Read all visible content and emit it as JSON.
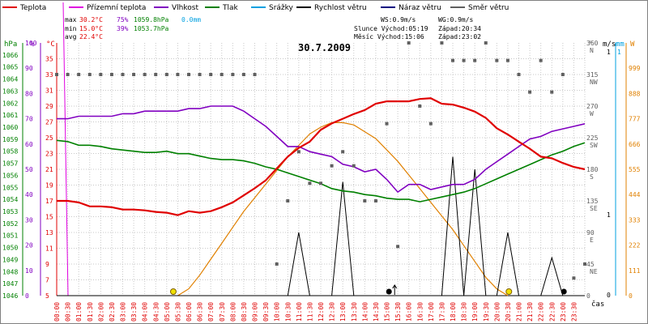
{
  "legend": [
    {
      "label": "Teplota",
      "color": "#e00000"
    },
    {
      "label": "Přízemní teplota",
      "color": "#e000e0"
    },
    {
      "label": "Vlhkost",
      "color": "#8000c0"
    },
    {
      "label": "Tlak",
      "color": "#008000"
    },
    {
      "label": "Srážky",
      "color": "#00a0e0"
    },
    {
      "label": "Rychlost větru",
      "color": "#000000"
    },
    {
      "label": "Náraz větru",
      "color": "#000080"
    },
    {
      "label": "Směr větru",
      "color": "#606060"
    }
  ],
  "stats": {
    "max": {
      "label": "max",
      "temp": "30.2°C",
      "hum": "75%",
      "press": "1059.8hPa",
      "rain": "0.0mm"
    },
    "min": {
      "label": "min",
      "temp": "15.0°C",
      "hum": "39%",
      "press": "1053.7hPa"
    },
    "avg": {
      "label": "avg",
      "temp": "22.4°C"
    }
  },
  "info": {
    "ws": "WS:0.9m/s",
    "wg": "WG:0.9m/s",
    "sun": "Slunce Východ:05:19",
    "sunset": "Západ:20:34",
    "moon": "Měsíc  Východ:15:06",
    "moonset": "Západ:23:02"
  },
  "date": "30.7.2009",
  "xaxis": {
    "ticks": [
      "00:00",
      "00:30",
      "01:00",
      "01:30",
      "02:00",
      "02:30",
      "03:00",
      "03:30",
      "04:00",
      "04:30",
      "05:00",
      "05:30",
      "06:00",
      "06:30",
      "07:00",
      "07:30",
      "08:00",
      "08:30",
      "09:00",
      "09:30",
      "10:00",
      "10:30",
      "11:00",
      "11:30",
      "12:00",
      "12:30",
      "13:00",
      "13:30",
      "14:00",
      "14:30",
      "15:00",
      "15:30",
      "16:00",
      "16:30",
      "17:00",
      "17:30",
      "18:00",
      "18:30",
      "19:00",
      "19:30",
      "20:00",
      "20:30",
      "21:00",
      "21:30",
      "22:00",
      "22:30",
      "23:00",
      "23:30"
    ],
    "label": "čas"
  },
  "axes": {
    "hpa": {
      "unit": "hPa",
      "ticks": [
        "1066",
        "1065",
        "1064",
        "1063",
        "1062",
        "1061",
        "1060",
        "1059",
        "1058",
        "1057",
        "1056",
        "1055",
        "1054",
        "1053",
        "1052",
        "1051",
        "1050",
        "1049",
        "1048",
        "1047",
        "1046"
      ],
      "color": "#008000"
    },
    "pct": {
      "unit": "%",
      "ticks": [
        "100",
        "90",
        "80",
        "70",
        "60",
        "50",
        "40",
        "30",
        "20",
        "10",
        "0"
      ],
      "color": "#8000c0"
    },
    "degc": {
      "unit": "°C",
      "ticks": [
        "35",
        "33",
        "31",
        "29",
        "27",
        "25",
        "23",
        "21",
        "19",
        "17",
        "15",
        "13",
        "11",
        "9",
        "7",
        "5"
      ],
      "color": "#e00000"
    },
    "dir": {
      "unit": "°",
      "ticks": [
        "360",
        "315",
        "270",
        "225",
        "180",
        "135",
        "90",
        "45",
        "0"
      ],
      "labels": [
        "N",
        "NW",
        "W",
        "SW",
        "S",
        "SE",
        "E",
        "NE",
        ""
      ],
      "color": "#606060"
    },
    "ms": {
      "unit": "m/s",
      "ticks": [
        "1",
        "1",
        "0"
      ],
      "color": "#000000"
    },
    "mm": {
      "unit": "mm",
      "ticks": [
        "1"
      ],
      "color": "#00a0e0"
    },
    "wm2": {
      "unit": "W",
      "ticks": [
        "999",
        "888",
        "777",
        "666",
        "555",
        "444",
        "333",
        "222",
        "111",
        "0"
      ],
      "color": "#e08000"
    }
  },
  "chart_data": {
    "type": "line",
    "x": [
      "00:00",
      "00:30",
      "01:00",
      "01:30",
      "02:00",
      "02:30",
      "03:00",
      "03:30",
      "04:00",
      "04:30",
      "05:00",
      "05:30",
      "06:00",
      "06:30",
      "07:00",
      "07:30",
      "08:00",
      "08:30",
      "09:00",
      "09:30",
      "10:00",
      "10:30",
      "11:00",
      "11:30",
      "12:00",
      "12:30",
      "13:00",
      "13:30",
      "14:00",
      "14:30",
      "15:00",
      "15:30",
      "16:00",
      "16:30",
      "17:00",
      "17:30",
      "18:00",
      "18:30",
      "19:00",
      "19:30",
      "20:00",
      "20:30",
      "21:00",
      "21:30",
      "22:00",
      "22:30",
      "23:00",
      "23:30",
      "24:00"
    ],
    "series": [
      {
        "name": "Teplota",
        "unit": "°C",
        "color": "#e00000",
        "values": [
          17.0,
          17.0,
          16.8,
          16.3,
          16.3,
          16.2,
          15.9,
          15.9,
          15.8,
          15.6,
          15.5,
          15.2,
          15.7,
          15.5,
          15.7,
          16.2,
          16.8,
          17.7,
          18.6,
          19.6,
          21.1,
          22.6,
          23.7,
          24.5,
          26.0,
          26.8,
          27.4,
          28.0,
          28.5,
          29.3,
          29.6,
          29.6,
          29.6,
          29.9,
          30.0,
          29.3,
          29.2,
          28.8,
          28.3,
          27.5,
          26.2,
          25.4,
          24.5,
          23.6,
          22.6,
          22.4,
          21.8,
          21.3,
          21.0
        ]
      },
      {
        "name": "Vlhkost",
        "unit": "%",
        "color": "#8000c0",
        "values": [
          70,
          70,
          71,
          71,
          71,
          71,
          72,
          72,
          73,
          73,
          73,
          73,
          74,
          74,
          75,
          75,
          75,
          73,
          70,
          67,
          63,
          59,
          59,
          57,
          56,
          55,
          52,
          51,
          49,
          50,
          46,
          41,
          44,
          44,
          42,
          43,
          44,
          44,
          46,
          50,
          53,
          56,
          59,
          62,
          63,
          65,
          66,
          67,
          68
        ]
      },
      {
        "name": "Tlak",
        "unit": "hPa",
        "color": "#008000",
        "values": [
          1058.9,
          1058.8,
          1058.5,
          1058.5,
          1058.4,
          1058.2,
          1058.1,
          1058.0,
          1057.9,
          1057.9,
          1058.0,
          1057.8,
          1057.8,
          1057.6,
          1057.4,
          1057.3,
          1057.3,
          1057.2,
          1057.0,
          1056.7,
          1056.5,
          1056.2,
          1055.9,
          1055.6,
          1055.3,
          1054.9,
          1054.7,
          1054.6,
          1054.4,
          1054.3,
          1054.1,
          1054.0,
          1054.0,
          1053.8,
          1054.0,
          1054.2,
          1054.4,
          1054.6,
          1054.9,
          1055.3,
          1055.7,
          1056.1,
          1056.5,
          1056.9,
          1057.3,
          1057.7,
          1058.0,
          1058.4,
          1058.7
        ]
      },
      {
        "name": "Rychlost větru",
        "unit": "m/s",
        "color": "#000000",
        "values": [
          0,
          0,
          0,
          0,
          0,
          0,
          0,
          0,
          0,
          0,
          0,
          0,
          0,
          0,
          0,
          0,
          0,
          0,
          0,
          0,
          0,
          0,
          0.5,
          0,
          0,
          0,
          0.9,
          0,
          0,
          0,
          0,
          0,
          0,
          0,
          0,
          0,
          1.1,
          0,
          1.0,
          0,
          0,
          0.5,
          0,
          0,
          0,
          0.3,
          0,
          0,
          0
        ]
      },
      {
        "name": "Směr větru",
        "unit": "°",
        "color": "#606060",
        "points": [
          [
            0,
            315
          ],
          [
            1,
            315
          ],
          [
            2,
            315
          ],
          [
            3,
            315
          ],
          [
            4,
            315
          ],
          [
            5,
            315
          ],
          [
            6,
            315
          ],
          [
            7,
            315
          ],
          [
            8,
            315
          ],
          [
            9,
            315
          ],
          [
            10,
            315
          ],
          [
            11,
            315
          ],
          [
            12,
            315
          ],
          [
            13,
            315
          ],
          [
            14,
            315
          ],
          [
            15,
            315
          ],
          [
            16,
            315
          ],
          [
            17,
            315
          ],
          [
            18,
            315
          ],
          [
            20,
            45
          ],
          [
            21,
            135
          ],
          [
            22,
            205
          ],
          [
            23,
            160
          ],
          [
            24,
            160
          ],
          [
            25,
            185
          ],
          [
            26,
            205
          ],
          [
            27,
            185
          ],
          [
            28,
            135
          ],
          [
            29,
            135
          ],
          [
            30,
            245
          ],
          [
            31,
            70
          ],
          [
            32,
            360
          ],
          [
            33,
            270
          ],
          [
            34,
            245
          ],
          [
            35,
            360
          ],
          [
            36,
            335
          ],
          [
            37,
            335
          ],
          [
            38,
            335
          ],
          [
            39,
            360
          ],
          [
            40,
            335
          ],
          [
            41,
            335
          ],
          [
            42,
            315
          ],
          [
            43,
            290
          ],
          [
            44,
            335
          ],
          [
            45,
            290
          ],
          [
            46,
            315
          ],
          [
            47,
            25
          ],
          [
            48,
            45
          ]
        ]
      },
      {
        "name": "Sluneční záření",
        "unit": "W",
        "color": "#e08000",
        "values": [
          0,
          0,
          0,
          0,
          0,
          0,
          0,
          0,
          0,
          0,
          0,
          0,
          30,
          90,
          160,
          230,
          300,
          370,
          430,
          490,
          550,
          610,
          660,
          710,
          740,
          760,
          760,
          750,
          720,
          690,
          640,
          590,
          530,
          470,
          410,
          350,
          290,
          220,
          150,
          80,
          30,
          0,
          0,
          0,
          0,
          0,
          0,
          0,
          0
        ]
      }
    ],
    "ylim_temp": [
      5,
      37
    ],
    "ylim_hum": [
      0,
      100
    ],
    "ylim_press": [
      1046,
      1067
    ],
    "ylim_dir": [
      0,
      360
    ],
    "ylim_wind": [
      0,
      2
    ],
    "ylim_solar": [
      0,
      1110
    ],
    "markers": {
      "sunrise_x": 10.6,
      "sunset_x": 41.1,
      "moonrise_x": 30.2,
      "moonset_x": 46.1
    },
    "grid": true
  }
}
